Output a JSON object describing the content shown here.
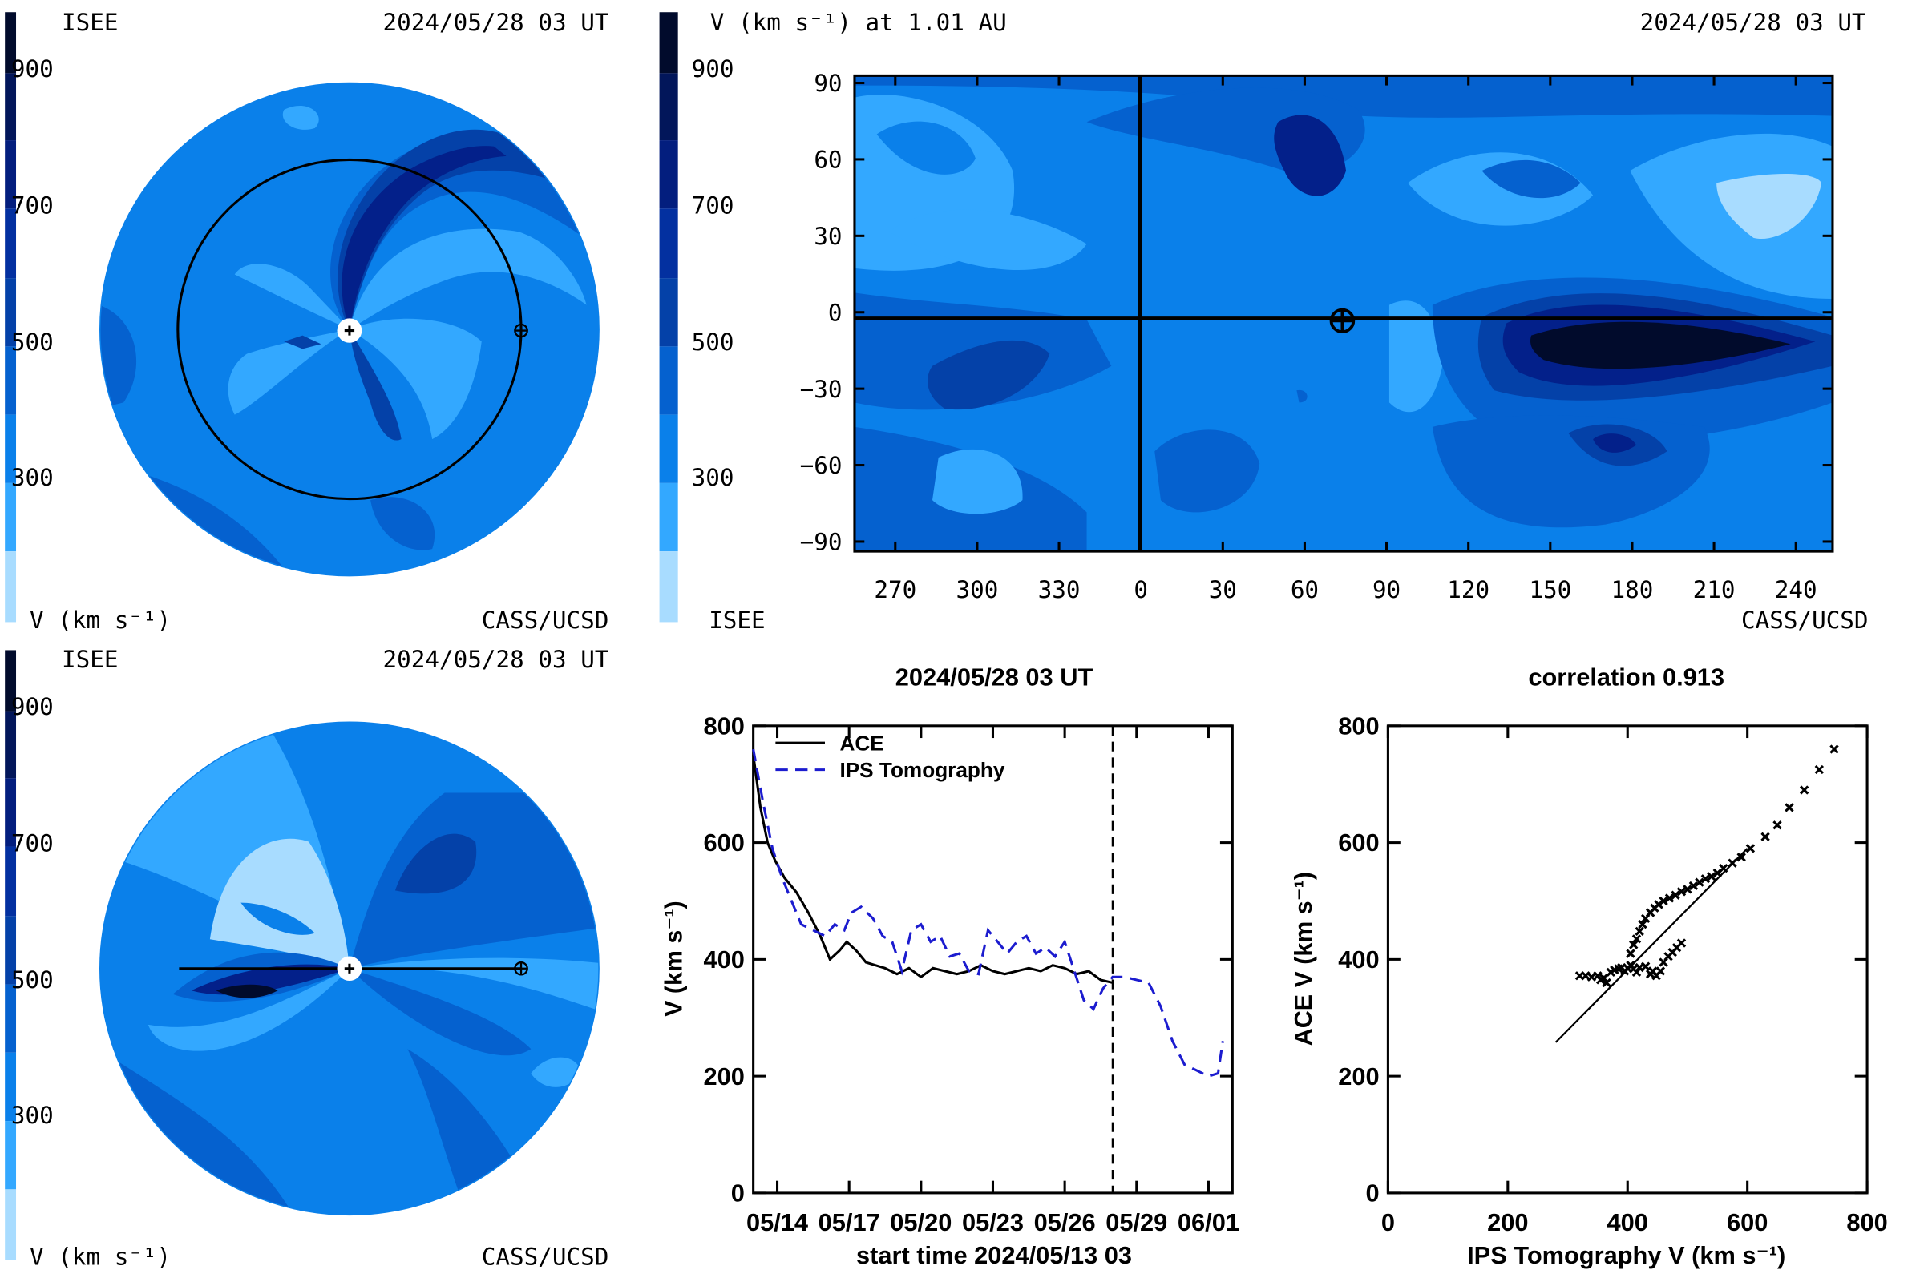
{
  "palette": {
    "lightest": "#a8dcff",
    "light": "#33a8ff",
    "mid": "#0a80ea",
    "deep": "#0561cf",
    "dark": "#0441a8",
    "darker": "#03208a",
    "darkest": "#010b2c",
    "axis": "#000000",
    "tomography_line": "#1c1ccf",
    "ace_line": "#000000"
  },
  "colorbar": {
    "ticks": [
      "900",
      "700",
      "500",
      "300"
    ],
    "unit_label": "V (km s⁻¹)"
  },
  "panel_ecliptic": {
    "source": "ISEE",
    "date": "2024/05/28 03 UT",
    "credit": "CASS/UCSD",
    "sun_icon": "sun-marker-icon",
    "earth_icon": "earth-marker-icon"
  },
  "panel_meridional": {
    "source": "ISEE",
    "date": "2024/05/28 03 UT",
    "credit": "CASS/UCSD",
    "sun_icon": "sun-marker-icon",
    "earth_icon": "earth-marker-icon"
  },
  "panel_map": {
    "title": "V (km s⁻¹) at 1.01 AU",
    "date": "2024/05/28 03 UT",
    "source": "ISEE",
    "credit": "CASS/UCSD",
    "y_ticks": [
      "90",
      "60",
      "30",
      "0",
      "−30",
      "−60",
      "−90"
    ],
    "x_ticks": [
      "270",
      "300",
      "330",
      "0",
      "30",
      "60",
      "90",
      "120",
      "150",
      "180",
      "210",
      "240"
    ],
    "earth_icon": "earth-marker-icon"
  },
  "chart_data": [
    {
      "type": "line",
      "title": "2024/05/28 03 UT",
      "xlabel": "start time 2024/05/13 03",
      "ylabel": "V (km s⁻¹)",
      "x_ticks": [
        "05/14",
        "05/17",
        "05/20",
        "05/23",
        "05/26",
        "05/29",
        "06/01"
      ],
      "x_tick_days": [
        1,
        4,
        7,
        10,
        13,
        16,
        19
      ],
      "y_ticks": [
        "800",
        "600",
        "400",
        "200",
        "0"
      ],
      "xlim_days": [
        0,
        20
      ],
      "ylim": [
        0,
        800
      ],
      "now_marker_day": 15.0,
      "legend_position": "top-left",
      "series": [
        {
          "name": "ACE",
          "style": "solid",
          "x_days": [
            0.0,
            0.3,
            0.6,
            0.9,
            1.3,
            1.8,
            2.3,
            2.8,
            3.2,
            3.6,
            3.9,
            4.3,
            4.7,
            5.1,
            5.5,
            6.0,
            6.5,
            7.0,
            7.5,
            8.0,
            8.5,
            9.0,
            9.5,
            10.0,
            10.5,
            11.0,
            11.5,
            12.0,
            12.5,
            13.0,
            13.5,
            14.0,
            14.5,
            15.0
          ],
          "y": [
            750,
            660,
            600,
            570,
            540,
            515,
            480,
            440,
            400,
            415,
            430,
            415,
            395,
            390,
            385,
            375,
            385,
            370,
            385,
            380,
            375,
            380,
            390,
            380,
            375,
            380,
            385,
            380,
            390,
            385,
            375,
            380,
            365,
            360
          ]
        },
        {
          "name": "IPS Tomography",
          "style": "dashed",
          "x_days": [
            0.0,
            0.4,
            0.8,
            1.2,
            1.6,
            2.0,
            2.5,
            3.0,
            3.4,
            3.8,
            4.1,
            4.5,
            5.0,
            5.4,
            5.8,
            6.2,
            6.6,
            7.0,
            7.4,
            7.8,
            8.2,
            8.6,
            9.0,
            9.4,
            9.8,
            10.2,
            10.6,
            11.0,
            11.4,
            11.8,
            12.2,
            12.6,
            13.0,
            13.4,
            13.8,
            14.2,
            14.6,
            15.0,
            15.5,
            16.0,
            16.5,
            17.0,
            17.5,
            18.0,
            18.5,
            19.0,
            19.4,
            19.6
          ],
          "y": [
            760,
            670,
            590,
            540,
            500,
            460,
            450,
            440,
            460,
            450,
            480,
            490,
            470,
            440,
            430,
            380,
            450,
            460,
            430,
            440,
            405,
            410,
            380,
            375,
            450,
            430,
            410,
            430,
            440,
            410,
            420,
            405,
            430,
            380,
            330,
            315,
            350,
            370,
            370,
            365,
            360,
            320,
            260,
            220,
            210,
            200,
            205,
            260
          ]
        }
      ]
    },
    {
      "type": "scatter",
      "title": "correlation 0.913",
      "xlabel": "IPS Tomography V (km s⁻¹)",
      "ylabel": "ACE V (km s⁻¹)",
      "x_ticks": [
        "0",
        "200",
        "400",
        "600",
        "800"
      ],
      "y_ticks": [
        "800",
        "600",
        "400",
        "200",
        "0"
      ],
      "xlim": [
        0,
        800
      ],
      "ylim": [
        0,
        800
      ],
      "marker": "x",
      "fit_line": {
        "x": [
          280,
          600
        ],
        "y": [
          258,
          590
        ]
      },
      "points": [
        [
          320,
          372
        ],
        [
          330,
          372
        ],
        [
          340,
          370
        ],
        [
          350,
          372
        ],
        [
          355,
          365
        ],
        [
          360,
          368
        ],
        [
          365,
          360
        ],
        [
          372,
          378
        ],
        [
          378,
          382
        ],
        [
          385,
          384
        ],
        [
          390,
          386
        ],
        [
          395,
          380
        ],
        [
          400,
          385
        ],
        [
          405,
          390
        ],
        [
          410,
          384
        ],
        [
          415,
          378
        ],
        [
          420,
          386
        ],
        [
          430,
          388
        ],
        [
          438,
          375
        ],
        [
          442,
          380
        ],
        [
          448,
          372
        ],
        [
          455,
          380
        ],
        [
          460,
          395
        ],
        [
          468,
          405
        ],
        [
          475,
          412
        ],
        [
          482,
          420
        ],
        [
          490,
          428
        ],
        [
          405,
          410
        ],
        [
          410,
          425
        ],
        [
          415,
          435
        ],
        [
          420,
          448
        ],
        [
          425,
          460
        ],
        [
          430,
          470
        ],
        [
          438,
          480
        ],
        [
          445,
          488
        ],
        [
          452,
          494
        ],
        [
          460,
          500
        ],
        [
          470,
          505
        ],
        [
          480,
          510
        ],
        [
          490,
          516
        ],
        [
          500,
          520
        ],
        [
          510,
          526
        ],
        [
          520,
          532
        ],
        [
          530,
          538
        ],
        [
          540,
          542
        ],
        [
          550,
          548
        ],
        [
          560,
          556
        ],
        [
          575,
          565
        ],
        [
          590,
          575
        ],
        [
          605,
          590
        ],
        [
          630,
          610
        ],
        [
          650,
          630
        ],
        [
          670,
          660
        ],
        [
          695,
          690
        ],
        [
          720,
          725
        ],
        [
          745,
          760
        ]
      ]
    }
  ]
}
